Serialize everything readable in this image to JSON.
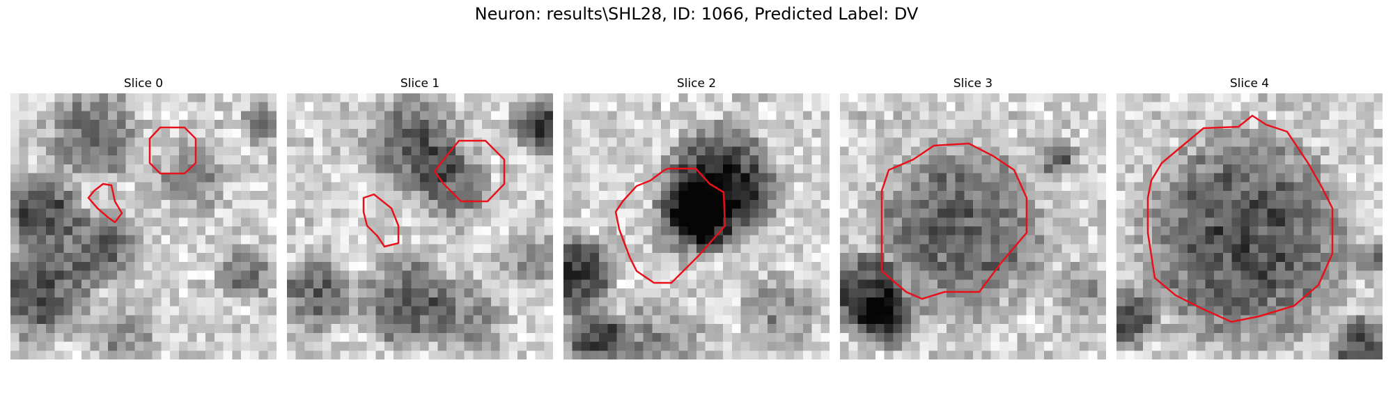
{
  "figure": {
    "title": "Neuron: results\\SHL28, ID: 1066, Predicted Label: DV",
    "panels": [
      {
        "title": "Slice 0"
      },
      {
        "title": "Slice 1"
      },
      {
        "title": "Slice 2"
      },
      {
        "title": "Slice 3"
      },
      {
        "title": "Slice 4"
      }
    ],
    "colors": {
      "contour": "#e8101a",
      "background": "#ffffff"
    }
  }
}
